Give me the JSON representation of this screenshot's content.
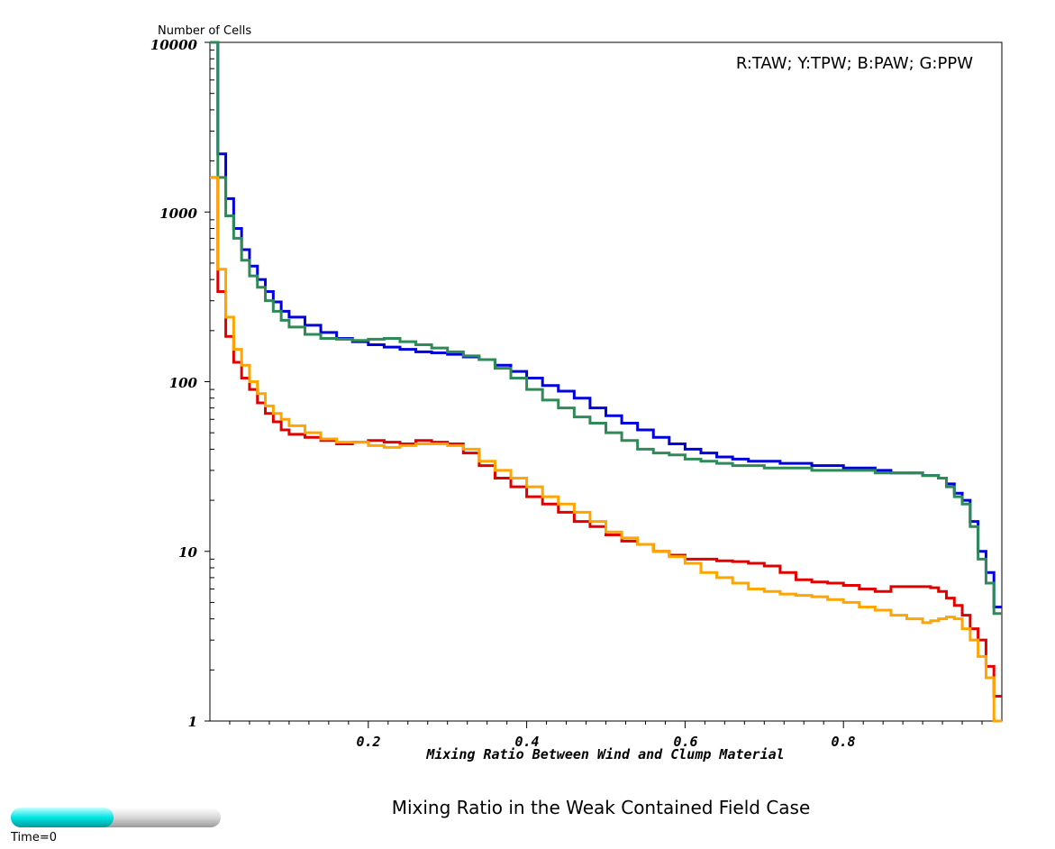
{
  "chart_data": {
    "type": "line",
    "step": true,
    "title": "Mixing Ratio in the Weak Contained Field Case",
    "xlabel": "Mixing Ratio Between Wind and Clump Material",
    "ylabel": "Number of Cells",
    "legend_text": "R:TAW; Y:TPW; B:PAW; G:PPW",
    "legend_position": "top-right",
    "xlim": [
      0,
      1
    ],
    "ylim": [
      1,
      10000
    ],
    "yscale": "log",
    "grid": false,
    "x_ticks": [
      "0.2",
      "0.4",
      "0.6",
      "0.8"
    ],
    "y_ticks": [
      "1",
      "10",
      "100",
      "1000",
      "10000"
    ],
    "series": [
      {
        "color": "#0000dd",
        "x": [
          0,
          0.01,
          0.02,
          0.03,
          0.04,
          0.05,
          0.06,
          0.07,
          0.08,
          0.09,
          0.1,
          0.12,
          0.14,
          0.16,
          0.18,
          0.2,
          0.22,
          0.24,
          0.26,
          0.28,
          0.3,
          0.32,
          0.34,
          0.36,
          0.38,
          0.4,
          0.42,
          0.44,
          0.46,
          0.48,
          0.5,
          0.52,
          0.54,
          0.56,
          0.58,
          0.6,
          0.62,
          0.64,
          0.66,
          0.68,
          0.7,
          0.72,
          0.74,
          0.76,
          0.78,
          0.8,
          0.82,
          0.84,
          0.86,
          0.88,
          0.9,
          0.91,
          0.92,
          0.93,
          0.94,
          0.95,
          0.96,
          0.97,
          0.98,
          0.99
        ],
        "y": [
          10000,
          2200,
          1200,
          800,
          600,
          480,
          400,
          340,
          295,
          260,
          240,
          215,
          195,
          180,
          172,
          165,
          160,
          155,
          150,
          148,
          145,
          140,
          135,
          125,
          115,
          105,
          95,
          88,
          80,
          70,
          63,
          57,
          52,
          47,
          43,
          40,
          38,
          36,
          35,
          34,
          34,
          33,
          33,
          32,
          32,
          31,
          31,
          30,
          29,
          29,
          28,
          28,
          27,
          25,
          22,
          20,
          15,
          10,
          7.5,
          4.7
        ]
      },
      {
        "color": "#2e8b57",
        "x": [
          0,
          0.01,
          0.02,
          0.03,
          0.04,
          0.05,
          0.06,
          0.07,
          0.08,
          0.09,
          0.1,
          0.12,
          0.14,
          0.16,
          0.18,
          0.2,
          0.22,
          0.24,
          0.26,
          0.28,
          0.3,
          0.32,
          0.34,
          0.36,
          0.38,
          0.4,
          0.42,
          0.44,
          0.46,
          0.48,
          0.5,
          0.52,
          0.54,
          0.56,
          0.58,
          0.6,
          0.62,
          0.64,
          0.66,
          0.68,
          0.7,
          0.72,
          0.74,
          0.76,
          0.78,
          0.8,
          0.82,
          0.84,
          0.86,
          0.88,
          0.9,
          0.91,
          0.92,
          0.93,
          0.94,
          0.95,
          0.96,
          0.97,
          0.98,
          0.99
        ],
        "y": [
          10000,
          1600,
          950,
          700,
          520,
          420,
          360,
          300,
          260,
          230,
          210,
          190,
          180,
          178,
          175,
          178,
          180,
          172,
          165,
          158,
          150,
          142,
          135,
          120,
          105,
          90,
          78,
          70,
          62,
          57,
          50,
          45,
          40,
          38,
          37,
          35,
          34,
          33,
          32,
          32,
          31,
          31,
          31,
          30,
          30,
          30,
          30,
          29,
          29,
          29,
          28,
          28,
          27,
          24,
          21,
          19,
          14,
          9,
          6.5,
          4.3
        ]
      },
      {
        "color": "#e00000",
        "x": [
          0,
          0.01,
          0.02,
          0.03,
          0.04,
          0.05,
          0.06,
          0.07,
          0.08,
          0.09,
          0.1,
          0.12,
          0.14,
          0.16,
          0.18,
          0.2,
          0.22,
          0.24,
          0.26,
          0.28,
          0.3,
          0.32,
          0.34,
          0.36,
          0.38,
          0.4,
          0.42,
          0.44,
          0.46,
          0.48,
          0.5,
          0.52,
          0.54,
          0.56,
          0.58,
          0.6,
          0.62,
          0.64,
          0.66,
          0.68,
          0.7,
          0.72,
          0.74,
          0.76,
          0.78,
          0.8,
          0.82,
          0.84,
          0.86,
          0.88,
          0.9,
          0.91,
          0.92,
          0.93,
          0.94,
          0.95,
          0.96,
          0.97,
          0.98,
          0.99
        ],
        "y": [
          1600,
          340,
          185,
          130,
          105,
          90,
          75,
          65,
          58,
          52,
          49,
          47,
          45,
          43,
          44,
          45,
          44,
          43,
          45,
          44,
          43,
          38,
          32,
          27,
          24,
          21,
          19,
          17,
          15,
          14,
          12.5,
          11.5,
          11,
          10,
          9.5,
          9,
          9,
          8.8,
          8.7,
          8.5,
          8.2,
          7.5,
          6.8,
          6.6,
          6.5,
          6.3,
          6,
          5.8,
          6.2,
          6.2,
          6.2,
          6.1,
          5.8,
          5.3,
          4.8,
          4.2,
          3.5,
          3.0,
          2.1,
          1.4
        ]
      },
      {
        "color": "#ffa500",
        "x": [
          0,
          0.01,
          0.02,
          0.03,
          0.04,
          0.05,
          0.06,
          0.07,
          0.08,
          0.09,
          0.1,
          0.12,
          0.14,
          0.16,
          0.18,
          0.2,
          0.22,
          0.24,
          0.26,
          0.28,
          0.3,
          0.32,
          0.34,
          0.36,
          0.38,
          0.4,
          0.42,
          0.44,
          0.46,
          0.48,
          0.5,
          0.52,
          0.54,
          0.56,
          0.58,
          0.6,
          0.62,
          0.64,
          0.66,
          0.68,
          0.7,
          0.72,
          0.74,
          0.76,
          0.78,
          0.8,
          0.82,
          0.84,
          0.86,
          0.88,
          0.9,
          0.91,
          0.92,
          0.93,
          0.94,
          0.95,
          0.96,
          0.97,
          0.98,
          0.99
        ],
        "y": [
          1600,
          460,
          240,
          155,
          125,
          100,
          85,
          72,
          65,
          60,
          55,
          50,
          46,
          44,
          44,
          42,
          41,
          42,
          43,
          43,
          42,
          40,
          34,
          30,
          27,
          24,
          21,
          19,
          17,
          15,
          13,
          12,
          11,
          10,
          9.3,
          8.5,
          7.5,
          7,
          6.5,
          6,
          5.8,
          5.6,
          5.5,
          5.4,
          5.2,
          5.0,
          4.7,
          4.5,
          4.2,
          4.0,
          3.8,
          3.9,
          4.0,
          4.1,
          4.0,
          3.5,
          3.0,
          2.4,
          1.8,
          1.0
        ]
      }
    ]
  },
  "time_slider": {
    "label": "Time=0",
    "progress": 0.49
  }
}
